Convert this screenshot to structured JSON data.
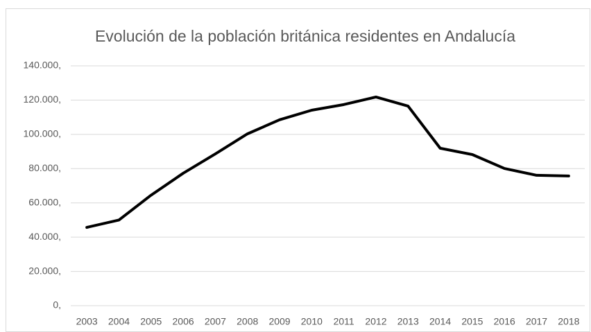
{
  "chart_data": {
    "type": "line",
    "title": "Evolución de la población británica residentes en Andalucía",
    "categories": [
      "2003",
      "2004",
      "2005",
      "2006",
      "2007",
      "2008",
      "2009",
      "2010",
      "2011",
      "2012",
      "2013",
      "2014",
      "2015",
      "2016",
      "2017",
      "2018"
    ],
    "values": [
      45700,
      50000,
      64500,
      77300,
      88600,
      100300,
      108500,
      114100,
      117400,
      121800,
      116500,
      91900,
      88200,
      80100,
      76100,
      75700
    ],
    "color": "#000000",
    "ylim": [
      0,
      140000
    ],
    "yticks": [
      {
        "value": 0,
        "label": "0,"
      },
      {
        "value": 20000,
        "label": "20.000,"
      },
      {
        "value": 40000,
        "label": "40.000,"
      },
      {
        "value": 60000,
        "label": "60.000,"
      },
      {
        "value": 80000,
        "label": "80.000,"
      },
      {
        "value": 100000,
        "label": "100.000,"
      },
      {
        "value": 120000,
        "label": "120.000,"
      },
      {
        "value": 140000,
        "label": "140.000,"
      }
    ],
    "grid": true
  }
}
